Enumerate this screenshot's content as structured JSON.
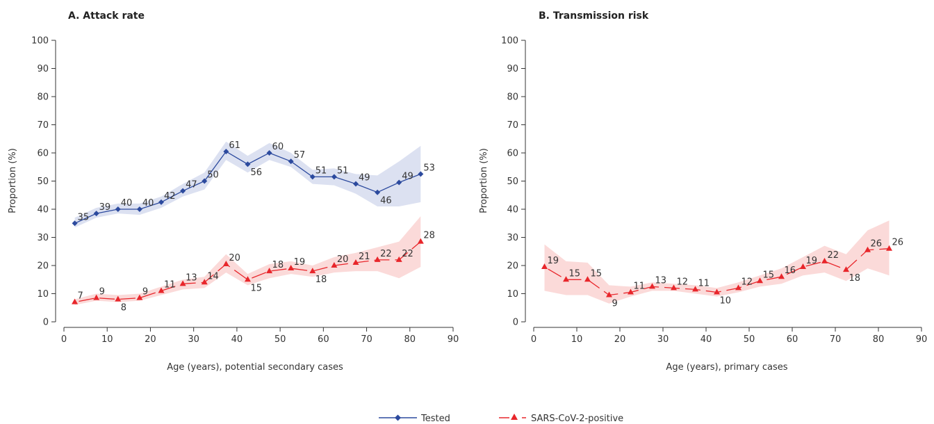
{
  "colors": {
    "tested": "#2c4a9e",
    "tested_band": "#d6dcee",
    "positive": "#e8262b",
    "positive_band": "#fad4d2",
    "axis": "#333333"
  },
  "legend": {
    "tested": "Tested",
    "positive": "SARS-CoV-2-positive"
  },
  "chart_data": [
    {
      "type": "line",
      "title": "A. Attack rate",
      "xlabel": "Age (years), potential secondary cases",
      "ylabel": "Proportion (%)",
      "xlim": [
        0,
        90
      ],
      "ylim": [
        0,
        100
      ],
      "xticks": [
        0,
        10,
        20,
        30,
        40,
        50,
        60,
        70,
        80,
        90
      ],
      "yticks": [
        0,
        10,
        20,
        30,
        40,
        50,
        60,
        70,
        80,
        90,
        100
      ],
      "series": [
        {
          "name": "Tested",
          "marker": "diamond",
          "style": "solid",
          "x": [
            2.5,
            7.5,
            12.5,
            17.5,
            22.5,
            27.5,
            32.5,
            37.5,
            42.5,
            47.5,
            52.5,
            57.5,
            62.5,
            67.5,
            72.5,
            77.5,
            82.5
          ],
          "y": [
            35,
            38.5,
            40,
            40,
            42.5,
            46.5,
            50,
            60.5,
            56,
            60,
            57,
            51.5,
            51.5,
            49,
            46,
            49.5,
            52.5
          ],
          "labels": [
            "35",
            "39",
            "40",
            "40",
            "42",
            "47",
            "50",
            "61",
            "56",
            "60",
            "57",
            "51",
            "51",
            "49",
            "46",
            "49",
            "53"
          ],
          "ci_low": [
            33.5,
            37,
            38.5,
            38,
            40.5,
            44.5,
            47,
            57.5,
            53,
            57.5,
            55,
            49,
            48.5,
            45.5,
            41,
            41,
            42.5
          ],
          "ci_high": [
            37,
            40.5,
            42,
            42,
            44.5,
            49,
            53,
            64,
            59,
            63.5,
            60,
            54,
            54.5,
            52.5,
            52,
            57,
            62.5
          ]
        },
        {
          "name": "SARS-CoV-2-positive",
          "marker": "triangle",
          "style": "dashed",
          "x": [
            2.5,
            7.5,
            12.5,
            17.5,
            22.5,
            27.5,
            32.5,
            37.5,
            42.5,
            47.5,
            52.5,
            57.5,
            62.5,
            67.5,
            72.5,
            77.5,
            82.5
          ],
          "y": [
            7,
            8.5,
            8,
            8.5,
            11,
            13.5,
            14,
            20.5,
            15,
            18,
            19,
            18,
            20,
            21,
            22,
            22,
            28.5
          ],
          "labels": [
            "7",
            "9",
            "8",
            "9",
            "11",
            "13",
            "14",
            "20",
            "15",
            "18",
            "19",
            "18",
            "20",
            "21",
            "22",
            "22",
            "28"
          ],
          "ci_low": [
            6,
            7.5,
            7,
            7.5,
            9.5,
            11.5,
            12,
            17.5,
            13,
            15.5,
            17,
            16,
            17.5,
            18,
            18,
            15.5,
            19.5
          ],
          "ci_high": [
            8,
            10,
            9.5,
            10,
            12.5,
            15,
            16,
            24,
            17,
            20.5,
            21.5,
            20,
            23,
            24.5,
            26.5,
            28.5,
            37.5
          ]
        }
      ]
    },
    {
      "type": "line",
      "title": "B. Transmission risk",
      "xlabel": "Age (years), primary cases",
      "ylabel": "Proportion (%)",
      "xlim": [
        0,
        90
      ],
      "ylim": [
        0,
        100
      ],
      "xticks": [
        0,
        10,
        20,
        30,
        40,
        50,
        60,
        70,
        80,
        90
      ],
      "yticks": [
        0,
        10,
        20,
        30,
        40,
        50,
        60,
        70,
        80,
        90,
        100
      ],
      "series": [
        {
          "name": "SARS-CoV-2-positive",
          "marker": "triangle",
          "style": "dashed",
          "x": [
            2.5,
            7.5,
            12.5,
            17.5,
            22.5,
            27.5,
            32.5,
            37.5,
            42.5,
            47.5,
            52.5,
            57.5,
            62.5,
            67.5,
            72.5,
            77.5,
            82.5
          ],
          "y": [
            19.5,
            15,
            15,
            9.5,
            10.5,
            12.5,
            12,
            11.5,
            10.5,
            12,
            14.5,
            16,
            19.5,
            21.5,
            18.5,
            25.5,
            26
          ],
          "labels": [
            "19",
            "15",
            "15",
            "9",
            "11",
            "13",
            "12",
            "11",
            "10",
            "12",
            "15",
            "16",
            "19",
            "22",
            "18",
            "26",
            "26"
          ],
          "ci_low": [
            11,
            9.5,
            9.5,
            6.5,
            9,
            11,
            11,
            10,
            9,
            10.5,
            12.5,
            13.5,
            16.5,
            17.5,
            14.5,
            19,
            16.5
          ],
          "ci_high": [
            27.5,
            21.5,
            21,
            13,
            12.5,
            14,
            13.5,
            13,
            12,
            14,
            16.5,
            19,
            23,
            27,
            24,
            32.5,
            36
          ]
        }
      ]
    }
  ]
}
